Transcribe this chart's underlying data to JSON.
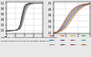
{
  "left_panel": {
    "xlim": [
      -2,
      6
    ],
    "ylim": [
      -0.1,
      1.05
    ],
    "xticks": [
      -2,
      0,
      2,
      4,
      6
    ],
    "yticks": [
      0.0,
      0.2,
      0.4,
      0.6,
      0.8,
      1.0
    ],
    "curves_x": [
      [
        -2,
        -1.5,
        -1,
        -0.5,
        0,
        0.5,
        1,
        1.5,
        2,
        2.5,
        3,
        3.5,
        4,
        5,
        6
      ],
      [
        -2,
        -1.5,
        -1,
        -0.5,
        0,
        0.5,
        1,
        1.5,
        2,
        2.5,
        3,
        3.5,
        4,
        5,
        6
      ],
      [
        -2,
        -1.5,
        -1,
        -0.5,
        0,
        0.5,
        1,
        1.5,
        2,
        2.5,
        3,
        3.5,
        4,
        5,
        6
      ],
      [
        -2,
        -1.5,
        -1,
        -0.5,
        0,
        0.5,
        1,
        1.5,
        2,
        2.5,
        3,
        3.5,
        4,
        5,
        6
      ],
      [
        -2,
        -1.5,
        -1,
        -0.5,
        0,
        0.5,
        1,
        1.5,
        2,
        2.5,
        3,
        3.5,
        4,
        5,
        6
      ],
      [
        -2,
        -1.5,
        -1,
        -0.5,
        0,
        0.5,
        1,
        1.5,
        2,
        2.5,
        3,
        3.5,
        4,
        5,
        6
      ],
      [
        -2,
        -1.5,
        -1,
        -0.5,
        0,
        0.5,
        1,
        1.5,
        2,
        2.5,
        3,
        3.5,
        4,
        5,
        6
      ],
      [
        -2,
        -1.5,
        -1,
        -0.5,
        0,
        0.5,
        1,
        1.5,
        2,
        2.5,
        3,
        3.5,
        4,
        5,
        6
      ]
    ],
    "curves_y": [
      [
        -0.02,
        -0.02,
        -0.01,
        -0.01,
        0.01,
        0.03,
        0.2,
        0.62,
        0.9,
        0.97,
        0.99,
        1.0,
        1.0,
        1.0,
        1.0
      ],
      [
        -0.02,
        -0.02,
        -0.01,
        -0.01,
        0.01,
        0.03,
        0.16,
        0.55,
        0.87,
        0.96,
        0.99,
        1.0,
        1.0,
        1.0,
        1.0
      ],
      [
        -0.02,
        -0.02,
        -0.01,
        -0.01,
        0.01,
        0.02,
        0.13,
        0.48,
        0.83,
        0.95,
        0.98,
        1.0,
        1.0,
        1.0,
        1.0
      ],
      [
        -0.02,
        -0.02,
        -0.01,
        -0.01,
        0.01,
        0.02,
        0.1,
        0.42,
        0.79,
        0.93,
        0.97,
        0.99,
        1.0,
        1.0,
        1.0
      ],
      [
        -0.02,
        -0.02,
        -0.01,
        -0.01,
        0.01,
        0.02,
        0.08,
        0.36,
        0.73,
        0.91,
        0.96,
        0.99,
        1.0,
        1.0,
        1.0
      ],
      [
        -0.02,
        -0.02,
        -0.01,
        -0.01,
        0.01,
        0.02,
        0.06,
        0.3,
        0.67,
        0.88,
        0.95,
        0.98,
        0.99,
        1.0,
        1.0
      ],
      [
        -0.02,
        -0.02,
        -0.01,
        -0.01,
        0.01,
        0.02,
        0.05,
        0.25,
        0.61,
        0.84,
        0.93,
        0.97,
        0.99,
        1.0,
        1.0
      ],
      [
        -0.02,
        -0.02,
        -0.01,
        -0.01,
        0.01,
        0.02,
        0.04,
        0.2,
        0.55,
        0.8,
        0.91,
        0.96,
        0.98,
        1.0,
        1.0
      ]
    ]
  },
  "right_panel": {
    "xlim": [
      0,
      3
    ],
    "ylim": [
      0,
      1.05
    ],
    "xticks": [
      0,
      1,
      2,
      3
    ],
    "yticks": [
      0.0,
      0.2,
      0.4,
      0.6,
      0.8,
      1.0
    ],
    "colors": [
      "#e05050",
      "#e07030",
      "#c8b820",
      "#50a050",
      "#3080c0",
      "#7050b0",
      "#b05090",
      "#50b0b0",
      "#909090",
      "#606060",
      "#b04040",
      "#c06020"
    ],
    "curves_x": [
      [
        0,
        0.3,
        0.6,
        0.9,
        1.2,
        1.5,
        1.8,
        2.1,
        2.4,
        2.7,
        3.0
      ],
      [
        0,
        0.3,
        0.6,
        0.9,
        1.2,
        1.5,
        1.8,
        2.1,
        2.4,
        2.7,
        3.0
      ],
      [
        0,
        0.3,
        0.6,
        0.9,
        1.2,
        1.5,
        1.8,
        2.1,
        2.4,
        2.7,
        3.0
      ],
      [
        0,
        0.3,
        0.6,
        0.9,
        1.2,
        1.5,
        1.8,
        2.1,
        2.4,
        2.7,
        3.0
      ],
      [
        0,
        0.3,
        0.6,
        0.9,
        1.2,
        1.5,
        1.8,
        2.1,
        2.4,
        2.7,
        3.0
      ],
      [
        0,
        0.3,
        0.6,
        0.9,
        1.2,
        1.5,
        1.8,
        2.1,
        2.4,
        2.7,
        3.0
      ],
      [
        0,
        0.3,
        0.6,
        0.9,
        1.2,
        1.5,
        1.8,
        2.1,
        2.4,
        2.7,
        3.0
      ],
      [
        0,
        0.3,
        0.6,
        0.9,
        1.2,
        1.5,
        1.8,
        2.1,
        2.4,
        2.7,
        3.0
      ],
      [
        0,
        0.3,
        0.6,
        0.9,
        1.2,
        1.5,
        1.8,
        2.1,
        2.4,
        2.7,
        3.0
      ],
      [
        0,
        0.3,
        0.6,
        0.9,
        1.2,
        1.5,
        1.8,
        2.1,
        2.4,
        2.7,
        3.0
      ],
      [
        0,
        0.3,
        0.6,
        0.9,
        1.2,
        1.5,
        1.8,
        2.1,
        2.4,
        2.7,
        3.0
      ],
      [
        0,
        0.3,
        0.6,
        0.9,
        1.2,
        1.5,
        1.8,
        2.1,
        2.4,
        2.7,
        3.0
      ]
    ],
    "curves_y": [
      [
        0,
        0.02,
        0.06,
        0.14,
        0.28,
        0.46,
        0.63,
        0.77,
        0.87,
        0.93,
        0.97
      ],
      [
        0,
        0.02,
        0.07,
        0.16,
        0.31,
        0.49,
        0.66,
        0.79,
        0.88,
        0.94,
        0.97
      ],
      [
        0,
        0.02,
        0.08,
        0.18,
        0.34,
        0.52,
        0.68,
        0.81,
        0.89,
        0.94,
        0.97
      ],
      [
        0,
        0.02,
        0.09,
        0.2,
        0.37,
        0.55,
        0.71,
        0.83,
        0.9,
        0.95,
        0.98
      ],
      [
        0,
        0.03,
        0.1,
        0.23,
        0.4,
        0.58,
        0.73,
        0.84,
        0.91,
        0.95,
        0.98
      ],
      [
        0,
        0.03,
        0.11,
        0.25,
        0.43,
        0.61,
        0.76,
        0.86,
        0.92,
        0.96,
        0.98
      ],
      [
        0,
        0.03,
        0.12,
        0.27,
        0.46,
        0.64,
        0.78,
        0.87,
        0.93,
        0.96,
        0.98
      ],
      [
        0,
        0.04,
        0.14,
        0.3,
        0.49,
        0.67,
        0.8,
        0.89,
        0.94,
        0.97,
        0.99
      ],
      [
        0,
        0.04,
        0.15,
        0.32,
        0.52,
        0.69,
        0.82,
        0.9,
        0.95,
        0.97,
        0.99
      ],
      [
        0,
        0.04,
        0.16,
        0.35,
        0.55,
        0.72,
        0.84,
        0.91,
        0.95,
        0.97,
        0.99
      ],
      [
        0,
        0.05,
        0.18,
        0.38,
        0.58,
        0.75,
        0.86,
        0.92,
        0.96,
        0.98,
        0.99
      ],
      [
        0,
        0.05,
        0.2,
        0.41,
        0.61,
        0.77,
        0.87,
        0.93,
        0.96,
        0.98,
        0.99
      ]
    ]
  },
  "bg_color": "#e8e8e8",
  "panel_bg": "#ffffff",
  "caption_lines": [
    "Figure 20 - Comparison of experimental and theoretical",
    "characteristics of n-type 4H Schottky diodes-SiC"
  ]
}
